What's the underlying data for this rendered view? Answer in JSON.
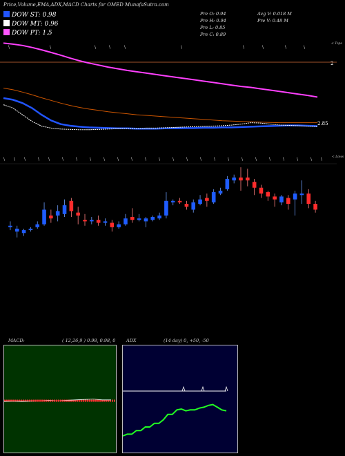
{
  "header": {
    "title": "Price,Volume,EMA,ADX,MACD Charts for OMED MunafaSutra.com"
  },
  "legend": [
    {
      "label": "DOW ST: 0.98",
      "color": "#2255ff"
    },
    {
      "label": "DOW MT: 0.96",
      "color": "#ffffff"
    },
    {
      "label": "DOW PT: 1.5",
      "color": "#ff55ff"
    }
  ],
  "ohlc": {
    "open": "Pre  O: 0.94",
    "high": "Pre  H: 0.94",
    "low": "Pre  L: 0.85",
    "close": "Pre  C: 0.89",
    "avg_vol": "Avg V: 0.018  M",
    "vol": "Pre  V: 0.48  M"
  },
  "price_axis": {
    "upper": "2",
    "lower": "2.85"
  },
  "markers": {
    "tops": "< Tops",
    "lows": "< Lows"
  },
  "macd": {
    "title_left": "MACD:",
    "title_right": "( 12,26,9 ) 0.98,  0.98,  0"
  },
  "adx": {
    "title_left": "ADX",
    "title_right": "(14  day) 0,  +50,  -50"
  },
  "colors": {
    "up": "#1f5cff",
    "down": "#ff2b2b",
    "ema_long": "#ff40ff",
    "ema_mid": "#cc5500",
    "ema_short": "#2255ff"
  },
  "chart_data": [
    {
      "type": "line",
      "name": "price-ema",
      "series": [
        {
          "color": "#ff40ff",
          "values": [
            3.55,
            3.52,
            3.48,
            3.42,
            3.35,
            3.27,
            3.19,
            3.1,
            3.02,
            2.95,
            2.89,
            2.83,
            2.78,
            2.73,
            2.69,
            2.65,
            2.61,
            2.57,
            2.53,
            2.49,
            2.45,
            2.41,
            2.37,
            2.33,
            2.29,
            2.25,
            2.22,
            2.18,
            2.14,
            2.1,
            2.06,
            2.02,
            1.98,
            1.93
          ]
        },
        {
          "color": "#cc5500",
          "values": [
            2.2,
            2.15,
            2.08,
            2.0,
            1.91,
            1.83,
            1.75,
            1.68,
            1.62,
            1.57,
            1.53,
            1.49,
            1.46,
            1.43,
            1.4,
            1.38,
            1.36,
            1.34,
            1.32,
            1.3,
            1.28,
            1.26,
            1.24,
            1.22,
            1.21,
            1.2,
            1.19,
            1.18,
            1.17,
            1.16,
            1.16,
            1.16,
            1.16,
            1.16
          ]
        },
        {
          "color": "#2255ff",
          "values": [
            1.9,
            1.85,
            1.75,
            1.6,
            1.4,
            1.23,
            1.12,
            1.07,
            1.04,
            1.02,
            1.01,
            1.0,
            0.99,
            0.99,
            0.98,
            0.98,
            0.98,
            0.99,
            0.99,
            1.0,
            1.0,
            1.01,
            1.01,
            1.02,
            1.02,
            1.03,
            1.04,
            1.05,
            1.06,
            1.07,
            1.08,
            1.08,
            1.07,
            1.06
          ]
        },
        {
          "color": "#ffffff",
          "values": [
            1.7,
            1.6,
            1.4,
            1.2,
            1.06,
            1.0,
            0.97,
            0.96,
            0.95,
            0.95,
            0.96,
            0.97,
            0.98,
            0.98,
            0.99,
            1.0,
            1.0,
            1.01,
            1.02,
            1.03,
            1.04,
            1.05,
            1.06,
            1.07,
            1.09,
            1.12,
            1.16,
            1.15,
            1.12,
            1.09,
            1.08,
            1.07,
            1.06,
            1.04
          ]
        }
      ]
    },
    {
      "type": "candlestick",
      "name": "price-candles",
      "candles": [
        {
          "o": 0.3,
          "c": 0.31,
          "h": 0.34,
          "l": 0.28
        },
        {
          "o": 0.27,
          "c": 0.29,
          "h": 0.31,
          "l": 0.23
        },
        {
          "o": 0.26,
          "c": 0.28,
          "h": 0.29,
          "l": 0.24
        },
        {
          "o": 0.28,
          "c": 0.29,
          "h": 0.3,
          "l": 0.27
        },
        {
          "o": 0.3,
          "c": 0.32,
          "h": 0.34,
          "l": 0.29
        },
        {
          "o": 0.32,
          "c": 0.42,
          "h": 0.47,
          "l": 0.31
        },
        {
          "o": 0.38,
          "c": 0.36,
          "h": 0.42,
          "l": 0.33
        },
        {
          "o": 0.38,
          "c": 0.41,
          "h": 0.45,
          "l": 0.34
        },
        {
          "o": 0.39,
          "c": 0.45,
          "h": 0.49,
          "l": 0.37
        },
        {
          "o": 0.48,
          "c": 0.41,
          "h": 0.5,
          "l": 0.37
        },
        {
          "o": 0.4,
          "c": 0.38,
          "h": 0.44,
          "l": 0.32
        },
        {
          "o": 0.35,
          "c": 0.34,
          "h": 0.39,
          "l": 0.31
        },
        {
          "o": 0.34,
          "c": 0.35,
          "h": 0.37,
          "l": 0.32
        },
        {
          "o": 0.35,
          "c": 0.33,
          "h": 0.38,
          "l": 0.31
        },
        {
          "o": 0.33,
          "c": 0.34,
          "h": 0.36,
          "l": 0.31
        },
        {
          "o": 0.33,
          "c": 0.3,
          "h": 0.35,
          "l": 0.27
        },
        {
          "o": 0.3,
          "c": 0.32,
          "h": 0.34,
          "l": 0.29
        },
        {
          "o": 0.32,
          "c": 0.36,
          "h": 0.39,
          "l": 0.31
        },
        {
          "o": 0.37,
          "c": 0.35,
          "h": 0.43,
          "l": 0.33
        },
        {
          "o": 0.35,
          "c": 0.36,
          "h": 0.39,
          "l": 0.34
        },
        {
          "o": 0.34,
          "c": 0.36,
          "h": 0.37,
          "l": 0.3
        },
        {
          "o": 0.35,
          "c": 0.37,
          "h": 0.38,
          "l": 0.34
        },
        {
          "o": 0.36,
          "c": 0.38,
          "h": 0.4,
          "l": 0.35
        },
        {
          "o": 0.38,
          "c": 0.48,
          "h": 0.54,
          "l": 0.36
        },
        {
          "o": 0.47,
          "c": 0.48,
          "h": 0.49,
          "l": 0.45
        },
        {
          "o": 0.48,
          "c": 0.47,
          "h": 0.5,
          "l": 0.46
        },
        {
          "o": 0.46,
          "c": 0.44,
          "h": 0.48,
          "l": 0.42
        },
        {
          "o": 0.42,
          "c": 0.47,
          "h": 0.49,
          "l": 0.4
        },
        {
          "o": 0.46,
          "c": 0.49,
          "h": 0.52,
          "l": 0.45
        },
        {
          "o": 0.5,
          "c": 0.48,
          "h": 0.53,
          "l": 0.44
        },
        {
          "o": 0.47,
          "c": 0.54,
          "h": 0.56,
          "l": 0.46
        },
        {
          "o": 0.53,
          "c": 0.55,
          "h": 0.57,
          "l": 0.52
        },
        {
          "o": 0.56,
          "c": 0.63,
          "h": 0.65,
          "l": 0.55
        },
        {
          "o": 0.62,
          "c": 0.64,
          "h": 0.66,
          "l": 0.6
        },
        {
          "o": 0.64,
          "c": 0.62,
          "h": 0.71,
          "l": 0.55
        },
        {
          "o": 0.64,
          "c": 0.62,
          "h": 0.7,
          "l": 0.58
        },
        {
          "o": 0.61,
          "c": 0.57,
          "h": 0.63,
          "l": 0.52
        },
        {
          "o": 0.57,
          "c": 0.53,
          "h": 0.59,
          "l": 0.5
        },
        {
          "o": 0.54,
          "c": 0.51,
          "h": 0.55,
          "l": 0.48
        },
        {
          "o": 0.51,
          "c": 0.49,
          "h": 0.53,
          "l": 0.44
        },
        {
          "o": 0.47,
          "c": 0.51,
          "h": 0.52,
          "l": 0.45
        },
        {
          "o": 0.5,
          "c": 0.46,
          "h": 0.52,
          "l": 0.42
        },
        {
          "o": 0.49,
          "c": 0.53,
          "h": 0.55,
          "l": 0.38
        },
        {
          "o": 0.52,
          "c": 0.53,
          "h": 0.62,
          "l": 0.46
        },
        {
          "o": 0.53,
          "c": 0.46,
          "h": 0.56,
          "l": 0.43
        },
        {
          "o": 0.46,
          "c": 0.42,
          "h": 0.48,
          "l": 0.4
        }
      ]
    },
    {
      "type": "line",
      "name": "macd",
      "series": [
        {
          "color": "#ffffff",
          "values": [
            -0.02,
            -0.01,
            -0.02,
            -0.01,
            0,
            0.01,
            0,
            0.01,
            0.02,
            0.03,
            0.04,
            0.02,
            0.02
          ]
        },
        {
          "color": "#ff3333",
          "values": [
            0,
            0,
            0,
            0,
            0,
            0,
            0,
            0,
            0,
            0,
            0,
            0,
            0
          ]
        }
      ]
    },
    {
      "type": "line",
      "name": "adx",
      "series": [
        {
          "color": "#ffffff",
          "values": [
            30,
            30,
            30,
            30,
            30,
            30,
            30,
            30,
            30,
            30,
            30,
            30,
            30,
            30,
            30,
            30,
            30,
            30,
            30,
            30,
            30,
            30,
            30,
            30
          ]
        },
        {
          "color": "#22ff22",
          "values": [
            -20,
            -18,
            -18,
            -14,
            -14,
            -10,
            -10,
            -6,
            -6,
            -2,
            4,
            4,
            9,
            10,
            8,
            9,
            9,
            11,
            12,
            14,
            15,
            12,
            9,
            8
          ]
        }
      ]
    }
  ]
}
